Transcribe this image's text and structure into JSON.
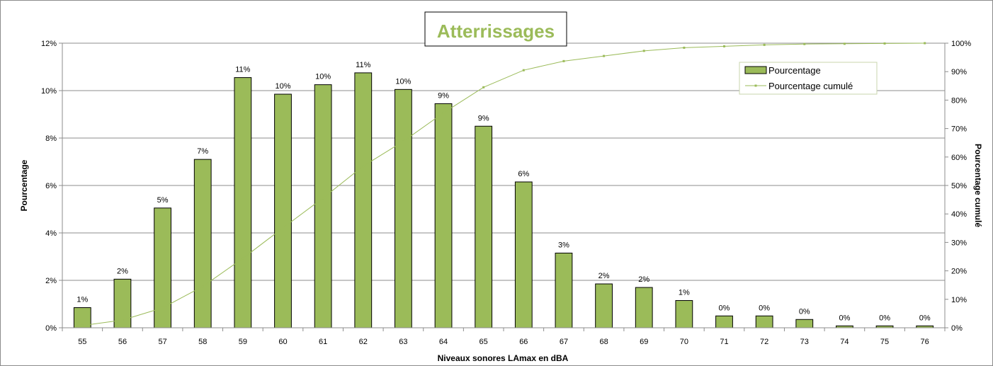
{
  "chart_data": {
    "type": "bar",
    "title": "Atterrissages",
    "xlabel": "Niveaux sonores LAmax en dBA",
    "ylabel": "Pourcentage",
    "y2label": "Pourcentage cumulé",
    "categories": [
      "55",
      "56",
      "57",
      "58",
      "59",
      "60",
      "61",
      "62",
      "63",
      "64",
      "65",
      "66",
      "67",
      "68",
      "69",
      "70",
      "71",
      "72",
      "73",
      "74",
      "75",
      "76"
    ],
    "ylim": [
      0,
      12
    ],
    "y2lim": [
      0,
      100
    ],
    "yticks": [
      "0%",
      "2%",
      "4%",
      "6%",
      "8%",
      "10%",
      "12%"
    ],
    "y2ticks": [
      "0%",
      "10%",
      "20%",
      "30%",
      "40%",
      "50%",
      "60%",
      "70%",
      "80%",
      "90%",
      "100%"
    ],
    "grid": true,
    "legend_position": "top-right",
    "series": [
      {
        "name": "Pourcentage",
        "type": "bar",
        "axis": "left",
        "color": "#9bbb59",
        "values": [
          0.85,
          2.05,
          5.05,
          7.1,
          10.55,
          9.85,
          10.25,
          10.75,
          10.05,
          9.45,
          8.5,
          6.15,
          3.15,
          1.85,
          1.7,
          1.15,
          0.5,
          0.5,
          0.35,
          0.08,
          0.08,
          0.08
        ],
        "labels": [
          "1%",
          "2%",
          "5%",
          "7%",
          "11%",
          "10%",
          "10%",
          "11%",
          "10%",
          "9%",
          "9%",
          "6%",
          "3%",
          "2%",
          "2%",
          "1%",
          "0%",
          "0%",
          "0%",
          "0%",
          "0%",
          "0%"
        ]
      },
      {
        "name": "Pourcentage cumulé",
        "type": "line",
        "axis": "right",
        "color": "#9bbb59",
        "values": [
          0.8,
          2.7,
          7.0,
          14.5,
          24.4,
          35.1,
          45.6,
          56.8,
          65.5,
          75.5,
          84.5,
          90.5,
          93.7,
          95.5,
          97.3,
          98.4,
          98.9,
          99.4,
          99.7,
          99.8,
          99.9,
          100.0
        ]
      }
    ]
  }
}
